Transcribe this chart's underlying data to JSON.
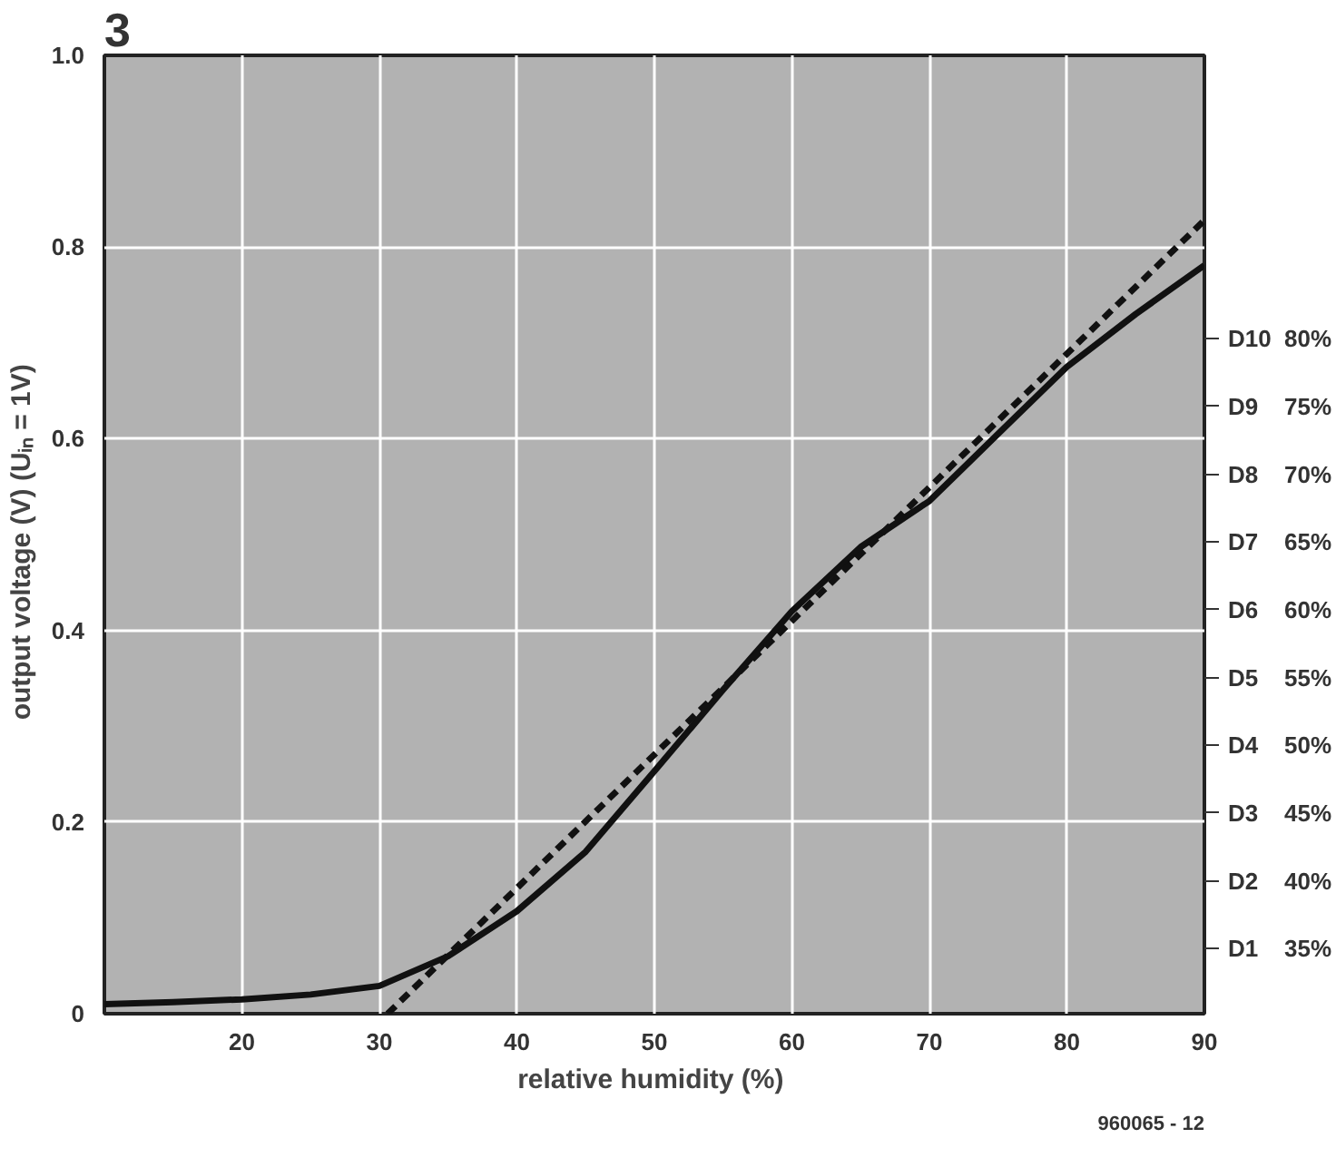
{
  "chart_data": {
    "type": "line",
    "xlabel": "relative humidity  (%)",
    "ylabel": "output voltage  (V)  (Uᵢₙ = 1V)",
    "x": [
      10,
      15,
      20,
      25,
      30,
      35,
      40,
      45,
      50,
      55,
      60,
      65,
      70,
      75,
      80,
      85,
      90
    ],
    "series": [
      {
        "color": "#111111",
        "line_style": "solid",
        "values": [
          0.01,
          0.012,
          0.015,
          0.02,
          0.029,
          0.06,
          0.107,
          0.169,
          0.253,
          0.338,
          0.42,
          0.487,
          0.535,
          0.605,
          0.675,
          0.73,
          0.781
        ]
      },
      {
        "type": "line",
        "color": "#111111",
        "line_style": "dashed",
        "x": [
          30.6,
          90
        ],
        "values": [
          0,
          0.828
        ]
      }
    ],
    "xlim": [
      10,
      90
    ],
    "ylim": [
      0,
      1
    ],
    "xticks": [
      20,
      30,
      40,
      50,
      60,
      70,
      80,
      90
    ],
    "yticks": [
      {
        "value": 0,
        "label": "0"
      },
      0.2,
      0.4,
      0.6,
      0.8,
      {
        "value": 1,
        "label": "1.0"
      }
    ],
    "y2lim": [
      30.2,
      100.9
    ],
    "y2ticks": [
      {
        "value": 35,
        "label": "35%"
      },
      {
        "value": 40,
        "label": "40%"
      },
      {
        "value": 45,
        "label": "45%"
      },
      {
        "value": 50,
        "label": "50%"
      },
      {
        "value": 55,
        "label": "55%"
      },
      {
        "value": 60,
        "label": "60%"
      },
      {
        "value": 65,
        "label": "65%"
      },
      {
        "value": 70,
        "label": "70%"
      },
      {
        "value": 75,
        "label": "75%"
      },
      {
        "value": 80,
        "label": "80%"
      }
    ],
    "grid": true,
    "annotations": [
      "3",
      "960065 - 12",
      "D1",
      "D2",
      "D3",
      "D4",
      "D5",
      "D6",
      "D7",
      "D8",
      "D9",
      "D10"
    ]
  }
}
